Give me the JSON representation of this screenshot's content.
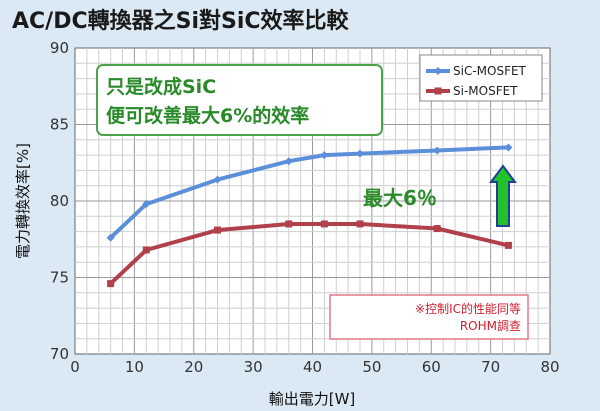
{
  "chart_data": {
    "type": "line",
    "title": "AC/DC轉換器之Si對SiC效率比較",
    "xlabel": "輸出電力[W]",
    "ylabel": "電力轉換效率[%]",
    "xlim": [
      0,
      80
    ],
    "ylim": [
      70,
      90
    ],
    "xticks": [
      0,
      10,
      20,
      30,
      40,
      50,
      60,
      70,
      80
    ],
    "yticks": [
      70,
      75,
      80,
      85,
      90
    ],
    "grid": true,
    "legend_position": "top-right",
    "series": [
      {
        "name": "SiC-MOSFET",
        "color": "#5b8fd9",
        "x": [
          6,
          12,
          24,
          36,
          42,
          48,
          61,
          73
        ],
        "values": [
          77.6,
          79.8,
          81.4,
          82.6,
          83.0,
          83.1,
          83.3,
          83.5
        ]
      },
      {
        "name": "Si-MOSFET",
        "color": "#b0404a",
        "x": [
          6,
          12,
          24,
          36,
          42,
          48,
          61,
          73
        ],
        "values": [
          74.6,
          76.8,
          78.1,
          78.5,
          78.5,
          78.5,
          78.2,
          77.1
        ]
      }
    ],
    "annotations": {
      "callout_box": [
        "只是改成SiC",
        "便可改善最大6%的效率"
      ],
      "arrow_label": "最大6％",
      "note_box": [
        "※控制IC的性能同等",
        "ROHM調查"
      ]
    },
    "colors": {
      "arrow_fill": "#22c22a",
      "arrow_outline": "#1f3f9a",
      "callout_text": "#2a8a2a",
      "note_text": "#d02030",
      "background": "#dbe9f5"
    }
  }
}
